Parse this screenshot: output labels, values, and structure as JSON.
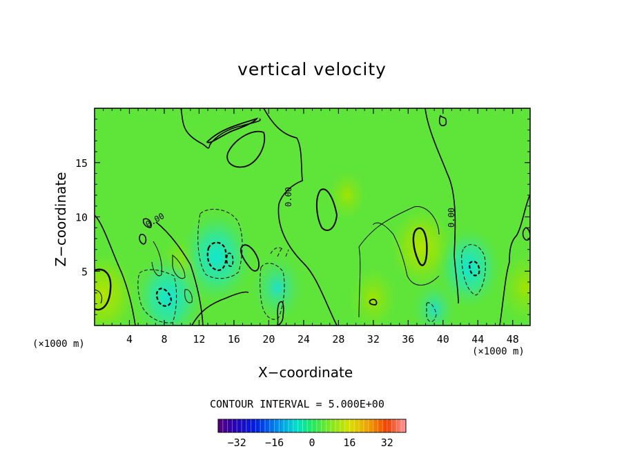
{
  "chart_data": {
    "type": "heatmap",
    "title": "vertical velocity",
    "xlabel": "X−coordinate",
    "ylabel": "Z−coordinate",
    "x_unit_label": "(×1000 m)",
    "xlim": [
      0,
      50
    ],
    "ylim": [
      0,
      20
    ],
    "x_ticks": [
      4,
      8,
      12,
      16,
      20,
      24,
      28,
      32,
      36,
      40,
      44,
      48
    ],
    "y_ticks": [
      5,
      10,
      15
    ],
    "contour_interval_text": "CONTOUR INTERVAL = 5.000E+00",
    "contour_labels": [
      "0.00",
      "0.00",
      "0.00"
    ],
    "colorbar": {
      "range": [
        -40,
        40
      ],
      "ticks": [
        "−32",
        "−16",
        "0",
        "16",
        "32"
      ],
      "tick_values": [
        -32,
        -16,
        0,
        16,
        32
      ]
    },
    "field_features": [
      {
        "kind": "updraft",
        "x": 1,
        "z": 2.8,
        "value": 12
      },
      {
        "kind": "updraft",
        "x": 37.5,
        "z": 7.2,
        "value": 11
      },
      {
        "kind": "updraft",
        "x": 32,
        "z": 2.5,
        "value": 7
      },
      {
        "kind": "updraft",
        "x": 29,
        "z": 12,
        "value": 4
      },
      {
        "kind": "updraft",
        "x": 49.5,
        "z": 3.5,
        "value": 9
      },
      {
        "kind": "updraft",
        "x": 10,
        "z": 5.5,
        "value": 6
      },
      {
        "kind": "downdraft",
        "x": 14,
        "z": 6.3,
        "value": -15
      },
      {
        "kind": "downdraft",
        "x": 8.5,
        "z": 2.6,
        "value": -14
      },
      {
        "kind": "downdraft",
        "x": 43,
        "z": 5.3,
        "value": -12
      },
      {
        "kind": "downdraft",
        "x": 21,
        "z": 3.5,
        "value": -9
      },
      {
        "kind": "downdraft",
        "x": 39,
        "z": 1.5,
        "value": -6
      }
    ],
    "background_value": 1.5
  }
}
